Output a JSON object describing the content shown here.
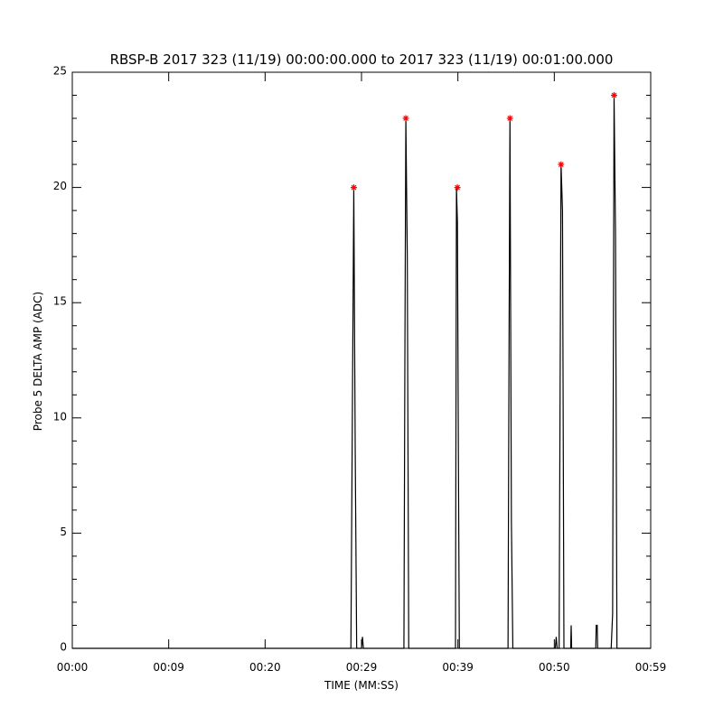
{
  "chart_data": {
    "type": "line",
    "title": "RBSP-B 2017 323 (11/19) 00:00:00.000 to 2017 323 (11/19) 00:01:00.000",
    "xlabel": "TIME (MM:SS)",
    "ylabel": "Probe 5 DELTA AMP (ADC)",
    "xlim": [
      0,
      60
    ],
    "ylim": [
      0,
      25
    ],
    "xticks": [
      {
        "value": 0,
        "label": "00:00"
      },
      {
        "value": 10,
        "label": "00:09"
      },
      {
        "value": 20,
        "label": "00:20"
      },
      {
        "value": 30,
        "label": "00:29"
      },
      {
        "value": 40,
        "label": "00:39"
      },
      {
        "value": 50,
        "label": "00:50"
      },
      {
        "value": 60,
        "label": "00:59"
      }
    ],
    "yticks": [
      0,
      5,
      10,
      15,
      20,
      25
    ],
    "yminor": 5,
    "series": [
      {
        "type": "line",
        "color": "#000000",
        "x": [
          0,
          28.9,
          29.05,
          29.2,
          29.35,
          29.5,
          30.0,
          30.1,
          30.2,
          34.4,
          34.5,
          34.6,
          34.75,
          34.9,
          39.75,
          39.85,
          39.95,
          40.05,
          40.15,
          45.2,
          45.3,
          45.4,
          45.55,
          45.7,
          50.1,
          50.2,
          50.3,
          50.5,
          50.6,
          50.7,
          50.85,
          51.0,
          51.7,
          51.75,
          51.8,
          54.3,
          54.35,
          54.45,
          54.5,
          55.9,
          56.05,
          56.2,
          56.35,
          56.5,
          60
        ],
        "values": [
          0,
          0,
          10,
          20,
          8.5,
          0,
          0,
          0.5,
          0,
          0,
          12.5,
          23,
          17,
          0,
          0,
          20,
          18.5,
          8.5,
          0,
          0,
          12.5,
          23,
          5.5,
          0,
          0,
          0.5,
          0,
          0,
          11,
          21,
          19,
          0,
          0,
          1,
          0,
          0,
          1,
          1,
          0,
          0,
          1.5,
          24,
          18,
          0,
          0
        ]
      },
      {
        "type": "scatter",
        "color": "#ff0000",
        "x": [
          29.2,
          34.6,
          39.95,
          45.4,
          50.7,
          56.2
        ],
        "values": [
          20,
          23,
          20,
          23,
          21,
          24
        ]
      }
    ]
  }
}
